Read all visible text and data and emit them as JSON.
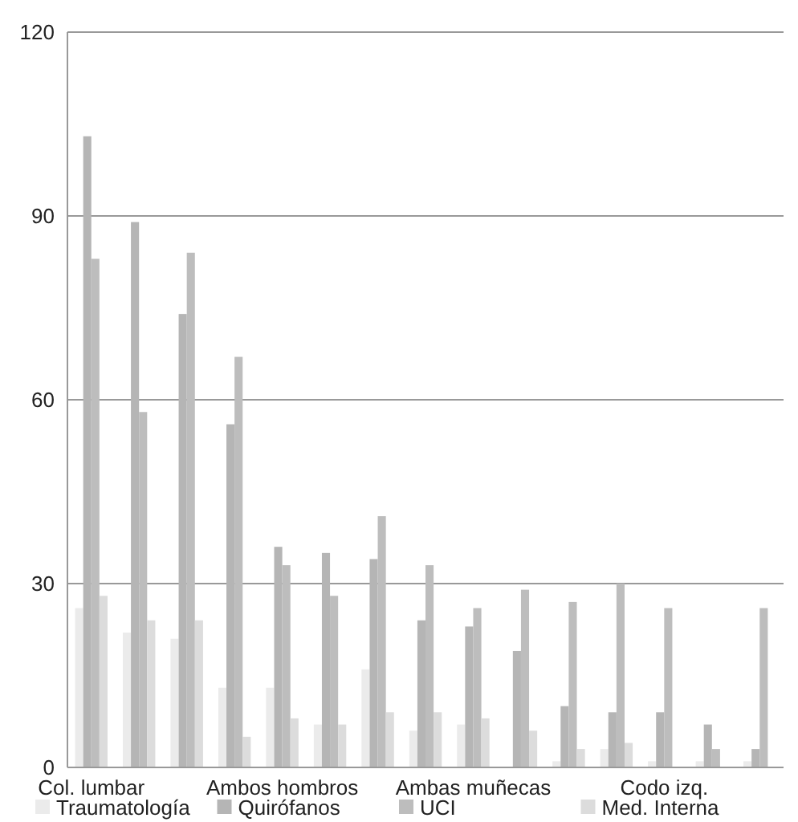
{
  "chart_data": {
    "type": "bar",
    "categories": [
      "Col. lumbar",
      null,
      null,
      null,
      "Ambos hombros",
      null,
      null,
      null,
      "Ambas muñecas",
      null,
      null,
      null,
      "Codo izq.",
      null,
      null
    ],
    "series": [
      {
        "name": "Traumatología",
        "color": "#ebebeb",
        "values": [
          26,
          22,
          21,
          13,
          13,
          7,
          16,
          6,
          7,
          0,
          1,
          3,
          1,
          1,
          1
        ]
      },
      {
        "name": "Quirófanos",
        "color": "#b5b5b5",
        "values": [
          103,
          89,
          74,
          56,
          36,
          35,
          34,
          24,
          23,
          19,
          10,
          9,
          9,
          7,
          3
        ]
      },
      {
        "name": "UCI",
        "color": "#bdbdbd",
        "values": [
          83,
          58,
          84,
          67,
          33,
          28,
          41,
          33,
          26,
          29,
          27,
          30,
          26,
          3,
          26
        ]
      },
      {
        "name": "Med. Interna",
        "color": "#dcdcdc",
        "values": [
          28,
          24,
          24,
          5,
          8,
          7,
          9,
          9,
          8,
          6,
          3,
          4,
          0,
          0,
          0
        ]
      }
    ],
    "ylim": [
      0,
      120
    ],
    "yticks": [
      0,
      30,
      60,
      90,
      120
    ],
    "grid": "y",
    "legend": "bottom"
  }
}
